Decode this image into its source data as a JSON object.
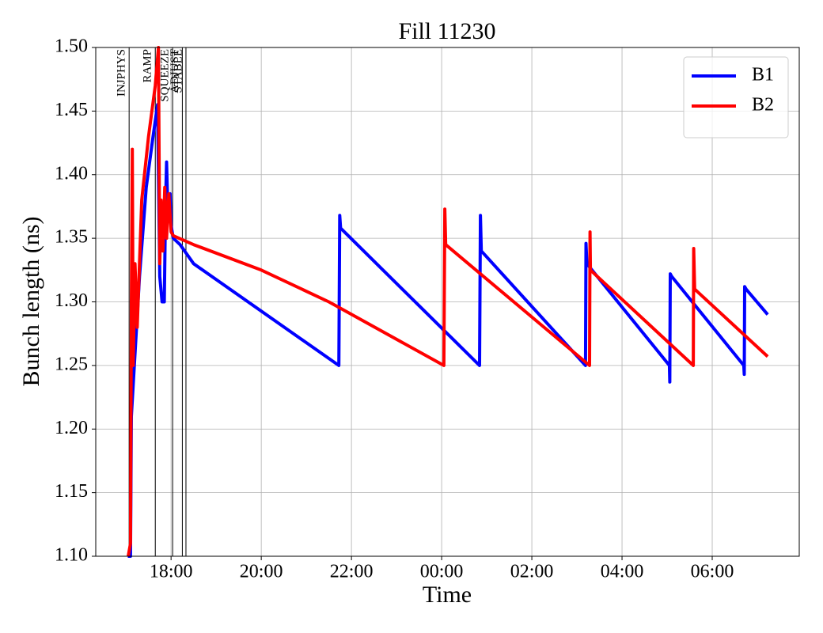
{
  "chart_data": {
    "type": "line",
    "title": "Fill 11230",
    "x_label": "Time",
    "y_label": "Bunch length (ns)",
    "xlim": [
      16.33,
      31.93
    ],
    "ylim": [
      1.1,
      1.5
    ],
    "xticks": [
      {
        "value": 18,
        "label": "18:00"
      },
      {
        "value": 20,
        "label": "20:00"
      },
      {
        "value": 22,
        "label": "22:00"
      },
      {
        "value": 24,
        "label": "00:00"
      },
      {
        "value": 26,
        "label": "02:00"
      },
      {
        "value": 28,
        "label": "04:00"
      },
      {
        "value": 30,
        "label": "06:00"
      }
    ],
    "yticks": [
      {
        "value": 1.1,
        "label": "1.10"
      },
      1.15,
      {
        "value": 1.2,
        "label": "1.20"
      },
      1.25,
      {
        "value": 1.3,
        "label": "1.30"
      },
      1.35,
      {
        "value": 1.4,
        "label": "1.40"
      },
      1.45,
      {
        "value": 1.5,
        "label": "1.50"
      }
    ],
    "grid": true,
    "legend": "upper right",
    "events": [
      {
        "label": "INJPHYS",
        "x": 17.07
      },
      {
        "label": "RAMP",
        "x": 17.65
      },
      {
        "label": "SQUEEZE",
        "x": 18.035
      },
      {
        "label": "ADJUST",
        "x": 18.25
      },
      {
        "label": "STABLE",
        "x": 18.33
      }
    ],
    "series": [
      {
        "name": "B1",
        "color": "#0000ff",
        "x": [
          17.04,
          17.1,
          17.12,
          17.3,
          17.45,
          17.6,
          17.7,
          17.75,
          17.8,
          17.85,
          17.88,
          17.9,
          17.93,
          17.98,
          18.0,
          18.05,
          18.2,
          18.5,
          21.72,
          21.74,
          21.76,
          24.84,
          24.86,
          24.88,
          27.19,
          27.2,
          27.22,
          29.05,
          29.06,
          29.07,
          29.1,
          30.7,
          30.71,
          30.72,
          30.75,
          31.23
        ],
        "values": [
          1.1,
          1.1,
          1.21,
          1.32,
          1.39,
          1.43,
          1.455,
          1.32,
          1.3,
          1.3,
          1.38,
          1.41,
          1.37,
          1.385,
          1.36,
          1.35,
          1.345,
          1.33,
          1.25,
          1.368,
          1.358,
          1.25,
          1.368,
          1.34,
          1.25,
          1.346,
          1.33,
          1.25,
          1.237,
          1.322,
          1.32,
          1.25,
          1.243,
          1.312,
          1.31,
          1.29
        ]
      },
      {
        "name": "B2",
        "color": "#ff0000",
        "x": [
          17.05,
          17.1,
          17.12,
          17.14,
          17.16,
          17.2,
          17.25,
          17.35,
          17.5,
          17.65,
          17.72,
          17.75,
          17.78,
          17.82,
          17.86,
          17.9,
          17.95,
          18.0,
          18.05,
          18.5,
          20.0,
          21.5,
          24.05,
          24.07,
          24.09,
          27.28,
          27.29,
          27.3,
          29.58,
          29.59,
          29.61,
          31.23
        ],
        "values": [
          1.1,
          1.11,
          1.3,
          1.42,
          1.25,
          1.33,
          1.28,
          1.38,
          1.43,
          1.47,
          1.5,
          1.33,
          1.38,
          1.34,
          1.39,
          1.35,
          1.385,
          1.355,
          1.352,
          1.345,
          1.325,
          1.3,
          1.25,
          1.373,
          1.345,
          1.25,
          1.355,
          1.325,
          1.25,
          1.342,
          1.31,
          1.257
        ]
      }
    ]
  }
}
